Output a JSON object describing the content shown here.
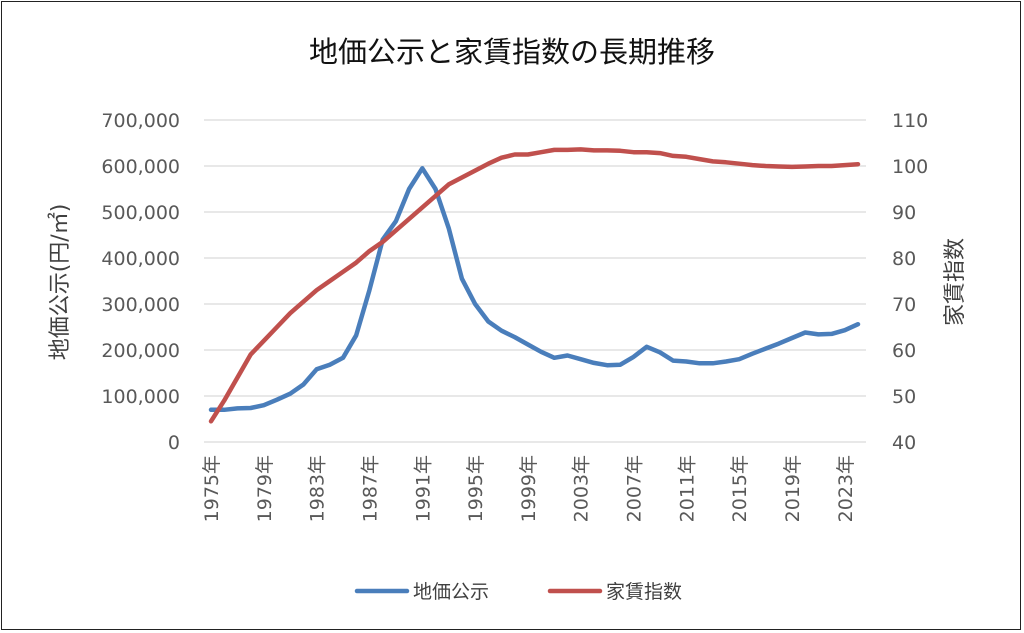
{
  "chart_data": {
    "type": "line",
    "title": "地価公示と家賃指数の長期推移",
    "ylabel": "地価公示(円/㎡)",
    "y2label": "家賃指数",
    "ylim": [
      0,
      700000
    ],
    "y2lim": [
      40,
      110
    ],
    "yticks": [
      "0",
      "100,000",
      "200,000",
      "300,000",
      "400,000",
      "500,000",
      "600,000",
      "700,000"
    ],
    "y2ticks": [
      "40",
      "50",
      "60",
      "70",
      "80",
      "90",
      "100",
      "110"
    ],
    "xtick_labels": [
      "1975年",
      "1979年",
      "1983年",
      "1987年",
      "1991年",
      "1995年",
      "1999年",
      "2003年",
      "2007年",
      "2011年",
      "2015年",
      "2019年",
      "2023年"
    ],
    "grid": true,
    "legend_position": "bottom",
    "x": [
      1975,
      1976,
      1977,
      1978,
      1979,
      1980,
      1981,
      1982,
      1983,
      1984,
      1985,
      1986,
      1987,
      1988,
      1989,
      1990,
      1991,
      1992,
      1993,
      1994,
      1995,
      1996,
      1997,
      1998,
      1999,
      2000,
      2001,
      2002,
      2003,
      2004,
      2005,
      2006,
      2007,
      2008,
      2009,
      2010,
      2011,
      2012,
      2013,
      2014,
      2015,
      2016,
      2017,
      2018,
      2019,
      2020,
      2021,
      2022,
      2023,
      2024
    ],
    "series": [
      {
        "name": "地価公示",
        "axis": "left",
        "color": "#4a7ebb",
        "values": [
          70000,
          70000,
          73000,
          74000,
          80000,
          92000,
          105000,
          125000,
          158000,
          168000,
          183000,
          232000,
          330000,
          440000,
          480000,
          550000,
          595000,
          550000,
          465000,
          355000,
          300000,
          262000,
          242000,
          228000,
          212000,
          196000,
          183000,
          188000,
          180000,
          172000,
          167000,
          168000,
          185000,
          207000,
          195000,
          177000,
          175000,
          171000,
          171000,
          175000,
          180000,
          192000,
          203000,
          214000,
          226000,
          238000,
          234000,
          235000,
          243000,
          256000
        ]
      },
      {
        "name": "家賃指数",
        "axis": "right",
        "color": "#c0504d",
        "values": [
          44.5,
          49,
          54,
          59,
          62,
          65,
          68,
          70.5,
          73,
          75,
          77,
          79,
          81.5,
          83.5,
          86,
          88.5,
          91,
          93.5,
          96,
          97.5,
          99,
          100.5,
          101.8,
          102.5,
          102.5,
          103,
          103.5,
          103.5,
          103.6,
          103.4,
          103.4,
          103.3,
          103,
          103,
          102.8,
          102.2,
          102,
          101.5,
          101,
          100.8,
          100.5,
          100.2,
          100,
          99.9,
          99.8,
          99.9,
          100,
          100,
          100.2,
          100.4
        ]
      }
    ]
  }
}
